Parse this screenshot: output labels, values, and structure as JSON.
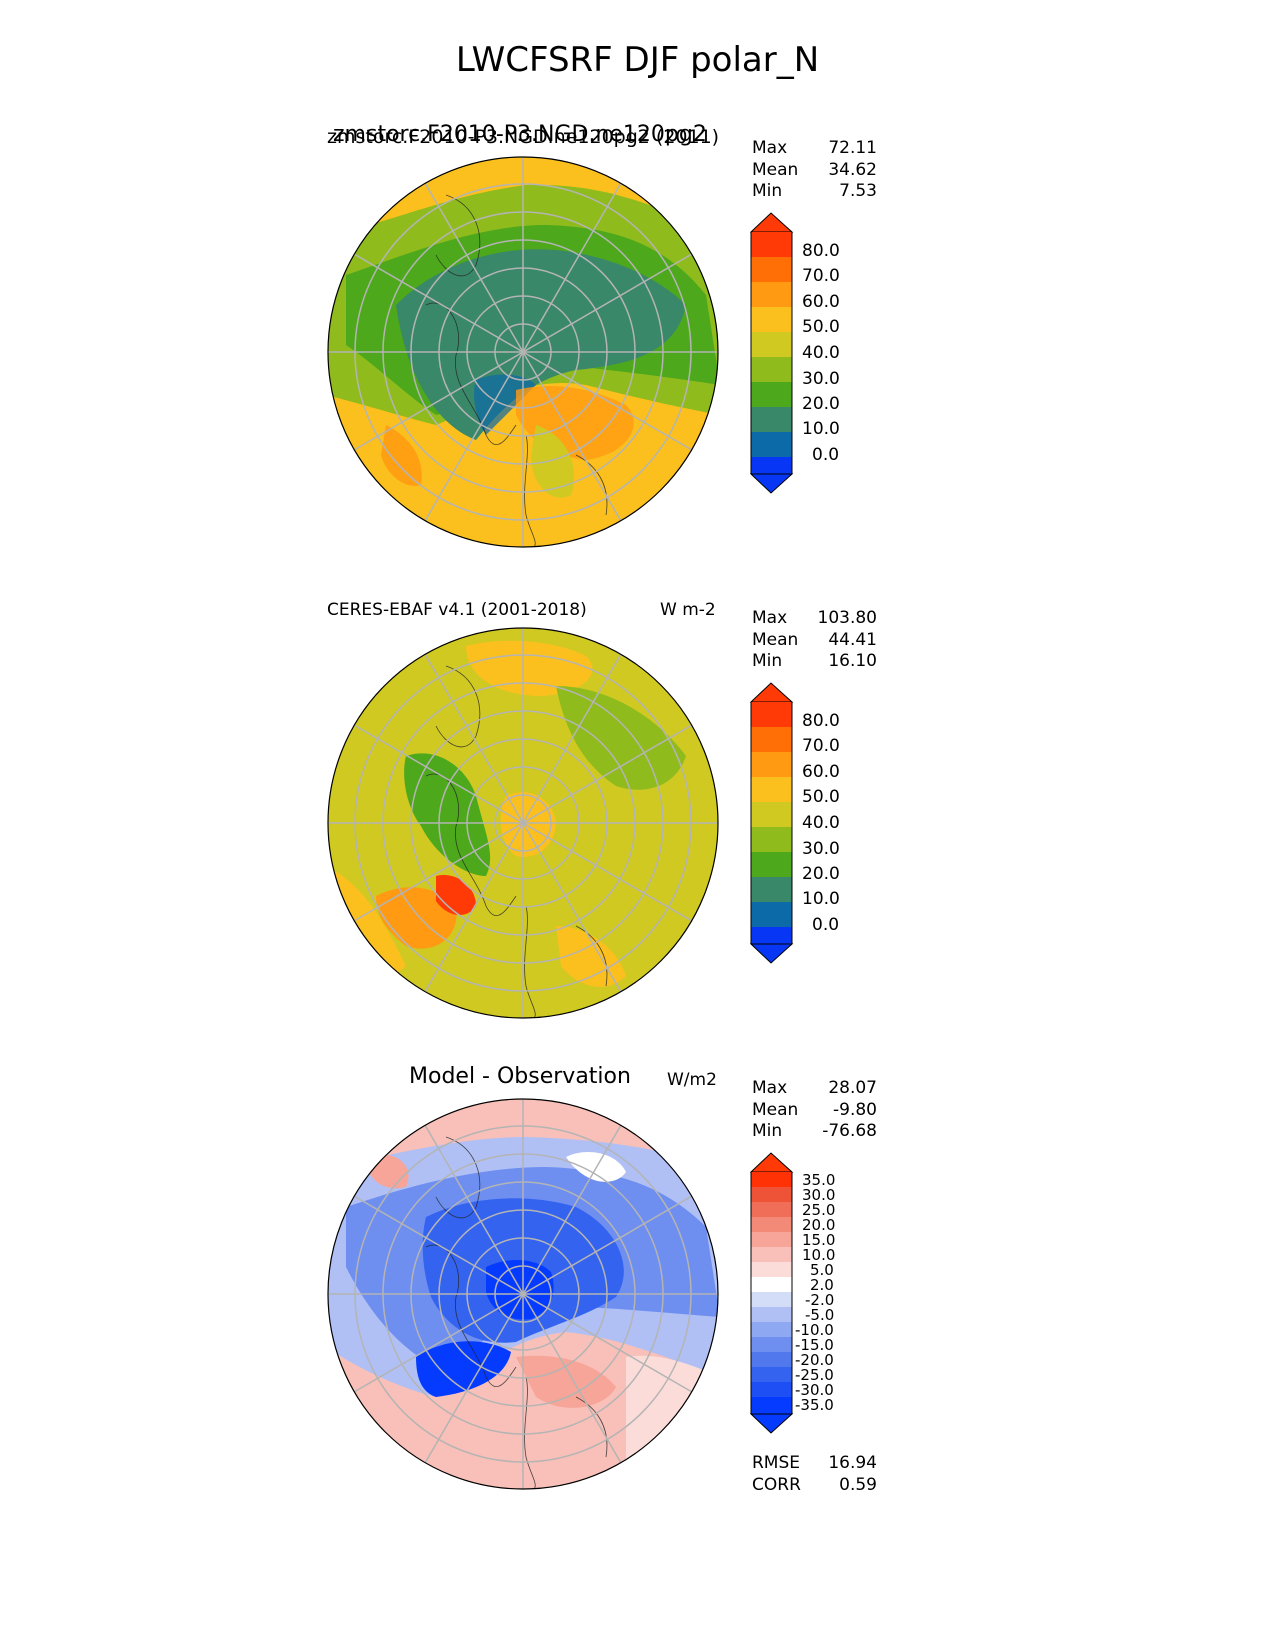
{
  "title": "LWCFSRF DJF polar_N",
  "panels": [
    {
      "left_label": "zmstorc.F2010-P3.NGD.ne120pg2",
      "overlap_labels": [
        "zmstorc.F2010-P3.NGD.ne120pg2",
        "zmstorc.F2010-P3.NGD.ne120pg2 (2011)"
      ],
      "right_label": "",
      "stats": {
        "names": [
          "Max",
          "Mean",
          "Min"
        ],
        "values": [
          "72.11",
          "34.62",
          "7.53"
        ]
      },
      "colorbar": {
        "levels": [
          "0.0",
          "10.0",
          "20.0",
          "30.0",
          "40.0",
          "50.0",
          "60.0",
          "70.0",
          "80.0"
        ],
        "colors": [
          "#0737f5",
          "#0d6aa8",
          "#39886a",
          "#4da81c",
          "#8fbb1d",
          "#cfc922",
          "#fcc01e",
          "#ff9a12",
          "#ff6f05",
          "#ff3a07"
        ]
      }
    },
    {
      "left_label": "CERES-EBAF v4.1 (2001-2018)",
      "right_label": "W m-2",
      "stats": {
        "names": [
          "Max",
          "Mean",
          "Min"
        ],
        "values": [
          "103.80",
          "44.41",
          "16.10"
        ]
      },
      "colorbar": {
        "levels": [
          "0.0",
          "10.0",
          "20.0",
          "30.0",
          "40.0",
          "50.0",
          "60.0",
          "70.0",
          "80.0"
        ],
        "colors": [
          "#0737f5",
          "#0d6aa8",
          "#39886a",
          "#4da81c",
          "#8fbb1d",
          "#cfc922",
          "#fcc01e",
          "#ff9a12",
          "#ff6f05",
          "#ff3a07"
        ]
      }
    },
    {
      "center_label": "Model - Observation",
      "right_label": "W/m2",
      "stats": {
        "names": [
          "Max",
          "Mean",
          "Min"
        ],
        "values": [
          "28.07",
          "-9.80",
          "-76.68"
        ]
      },
      "colorbar": {
        "levels": [
          "-35.0",
          "-30.0",
          "-25.0",
          "-20.0",
          "-15.0",
          "-10.0",
          "-5.0",
          "-2.0",
          "2.0",
          "5.0",
          "10.0",
          "15.0",
          "20.0",
          "25.0",
          "30.0",
          "35.0"
        ],
        "colors": [
          "#053bff",
          "#1d4ff5",
          "#3463f0",
          "#5278ee",
          "#6f8ff0",
          "#8fa8f2",
          "#b0c0f5",
          "#d4ddf8",
          "#ffffff",
          "#fbdcd8",
          "#f8c0b8",
          "#f6a598",
          "#f38a78",
          "#f06e58",
          "#ee5338",
          "#ff3205",
          "#ff3a07"
        ]
      },
      "footer_stats": {
        "names": [
          "RMSE",
          "CORR"
        ],
        "values": [
          "16.94",
          "0.59"
        ]
      }
    }
  ]
}
